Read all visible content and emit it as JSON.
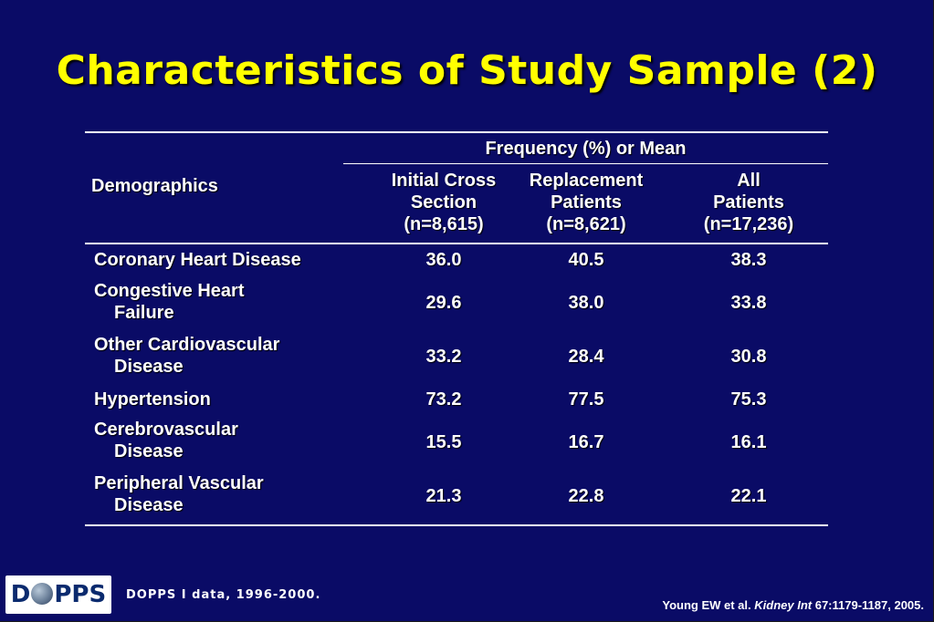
{
  "title": "Characteristics of Study Sample (2)",
  "table": {
    "group_header": "Frequency (%) or Mean",
    "row_header": "Demographics",
    "columns": [
      {
        "line1": "Initial Cross",
        "line2": "Section",
        "line3": "(n=8,615)"
      },
      {
        "line1": "Replacement",
        "line2": "Patients",
        "line3": "(n=8,621)"
      },
      {
        "line1": "All",
        "line2": "Patients",
        "line3": "(n=17,236)"
      }
    ],
    "rows": [
      {
        "line1": "Coronary Heart Disease",
        "line2": "",
        "values": [
          "36.0",
          "40.5",
          "38.3"
        ]
      },
      {
        "line1": "Congestive Heart",
        "line2": "Failure",
        "values": [
          "29.6",
          "38.0",
          "33.8"
        ]
      },
      {
        "line1": "Other Cardiovascular",
        "line2": "Disease",
        "values": [
          "33.2",
          "28.4",
          "30.8"
        ]
      },
      {
        "line1": "Hypertension",
        "line2": "",
        "values": [
          "73.2",
          "77.5",
          "75.3"
        ]
      },
      {
        "line1": "Cerebrovascular",
        "line2": "Disease",
        "values": [
          "15.5",
          "16.7",
          "16.1"
        ]
      },
      {
        "line1": "Peripheral Vascular",
        "line2": "Disease",
        "values": [
          "21.3",
          "22.8",
          "22.1"
        ]
      }
    ]
  },
  "footer": {
    "logo_left": "D",
    "logo_right": "PPS",
    "logo_icon": "globe-icon",
    "data_note": "DOPPS I data, 1996-2000.",
    "citation_authors": "Young EW et al.",
    "citation_journal": "Kidney Int",
    "citation_details": "67:1179-1187, 2005."
  },
  "colors": {
    "background": "#0a0b66",
    "title": "#ffff00",
    "text": "#ffffff"
  }
}
